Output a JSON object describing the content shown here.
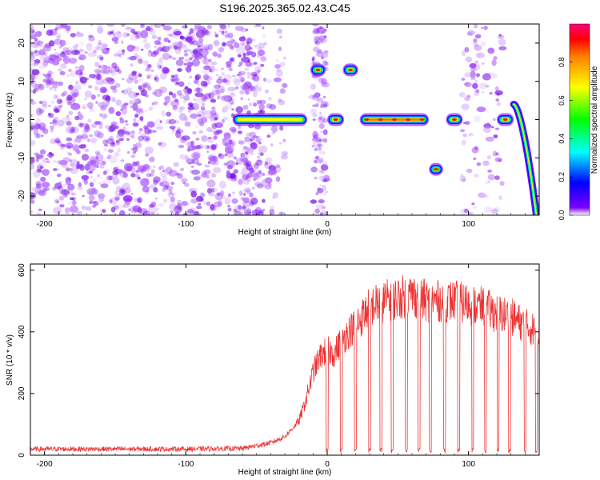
{
  "figure": {
    "title": "S196.2025.365.02.43.C45"
  },
  "chart_data": [
    {
      "type": "heatmap",
      "xlabel": "Height of straight line (km)",
      "ylabel": "Frequency (Hz)",
      "xlim": [
        -210,
        150
      ],
      "ylim": [
        -25,
        25
      ],
      "xticks": [
        -200,
        -100,
        0,
        100
      ],
      "yticks": [
        -20,
        -10,
        0,
        10,
        20
      ],
      "colorbar": {
        "label": "Normalized spectral amplitude",
        "range": [
          0,
          1
        ],
        "ticks": [
          0,
          0.2,
          0.4,
          0.6,
          0.8
        ],
        "tick_labels": [
          "0.0",
          "0.2",
          "0.4",
          "0.6",
          "0.8"
        ],
        "colormap": "rainbow"
      },
      "noise_region_km": [
        -210,
        -45
      ],
      "noise_bands_km": [
        [
          -10,
          0
        ],
        [
          95,
          125
        ]
      ],
      "ridges": [
        {
          "x": [
            -67,
            -14
          ],
          "freq": 0,
          "amplitude": 0.85
        },
        {
          "x": [
            -12,
            -1
          ],
          "freq": 13,
          "amplitude": 1.0
        },
        {
          "x": [
            0,
            12
          ],
          "freq": 0,
          "amplitude": 1.0
        },
        {
          "x": [
            11,
            22
          ],
          "freq": 13,
          "amplitude": 1.0
        },
        {
          "x": [
            23,
            72
          ],
          "freq": 0,
          "amplitude": 1.0
        },
        {
          "x": [
            72,
            82
          ],
          "freq": -13,
          "amplitude": 1.0
        },
        {
          "x": [
            84,
            96
          ],
          "freq": 0,
          "amplitude": 1.0
        },
        {
          "x": [
            120,
            132
          ],
          "freq": 0,
          "amplitude": 1.0
        },
        {
          "x": [
            132,
            148
          ],
          "freq": "4 to -25",
          "amplitude": 0.8
        }
      ]
    },
    {
      "type": "line",
      "xlabel": "Height of straight line (km)",
      "ylabel": "SNR (10 * v/v)",
      "xlim": [
        -210,
        150
      ],
      "ylim": [
        0,
        620
      ],
      "xticks": [
        -200,
        -100,
        0,
        100
      ],
      "yticks": [
        0,
        200,
        400,
        600
      ],
      "color": "#ee3333",
      "series": [
        {
          "x": [
            -210,
            -150,
            -100,
            -60,
            -40,
            -30,
            -20,
            -15,
            -10,
            -5,
            0,
            5,
            10,
            15,
            20,
            25,
            30,
            40,
            50,
            60,
            70,
            80,
            90,
            100,
            110,
            120,
            130,
            140,
            150
          ],
          "values": [
            20,
            20,
            20,
            22,
            40,
            60,
            110,
            180,
            270,
            320,
            340,
            330,
            370,
            400,
            420,
            450,
            480,
            500,
            510,
            520,
            500,
            500,
            500,
            490,
            480,
            460,
            450,
            420,
            400
          ]
        }
      ],
      "dropouts_km": [
        0,
        10,
        20,
        30,
        38,
        46,
        56,
        65,
        73,
        83,
        93,
        103,
        112,
        121,
        129,
        140,
        148
      ]
    }
  ]
}
